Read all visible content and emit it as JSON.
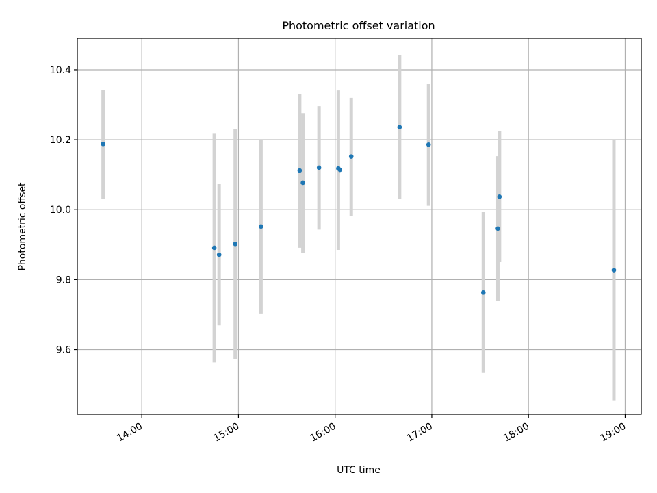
{
  "chart_data": {
    "type": "scatter",
    "title": "Photometric offset variation",
    "xlabel": "UTC time",
    "ylabel": "Photometric offset",
    "grid": true,
    "xlim": [
      "13:20",
      "19:10"
    ],
    "ylim": [
      9.415,
      10.49
    ],
    "x_ticks": [
      "14:00",
      "15:00",
      "16:00",
      "17:00",
      "18:00",
      "19:00"
    ],
    "y_ticks": [
      9.6,
      9.8,
      10.0,
      10.2,
      10.4
    ],
    "y_tick_labels": [
      "9.6",
      "9.8",
      "10.0",
      "10.2",
      "10.4"
    ],
    "colors": {
      "marker": "#1f77b4",
      "errorbar": "#d3d3d3",
      "grid": "#b0b0b0"
    },
    "series": [
      {
        "points": [
          {
            "x": "13:36",
            "y": 10.188,
            "yerr_low": 10.03,
            "yerr_high": 10.343
          },
          {
            "x": "14:45",
            "y": 9.891,
            "yerr_low": 9.563,
            "yerr_high": 10.219
          },
          {
            "x": "14:48",
            "y": 9.871,
            "yerr_low": 9.669,
            "yerr_high": 10.075
          },
          {
            "x": "14:58",
            "y": 9.902,
            "yerr_low": 9.573,
            "yerr_high": 10.231
          },
          {
            "x": "15:14",
            "y": 9.952,
            "yerr_low": 9.703,
            "yerr_high": 10.2
          },
          {
            "x": "15:38",
            "y": 10.112,
            "yerr_low": 9.891,
            "yerr_high": 10.331
          },
          {
            "x": "15:40",
            "y": 10.077,
            "yerr_low": 9.877,
            "yerr_high": 10.276
          },
          {
            "x": "15:50",
            "y": 10.12,
            "yerr_low": 9.943,
            "yerr_high": 10.296
          },
          {
            "x": "16:02",
            "y": 10.118,
            "yerr_low": 9.885,
            "yerr_high": 10.341
          },
          {
            "x": "16:03",
            "y": 10.114
          },
          {
            "x": "16:10",
            "y": 10.152,
            "yerr_low": 9.982,
            "yerr_high": 10.32
          },
          {
            "x": "16:40",
            "y": 10.236,
            "yerr_low": 10.03,
            "yerr_high": 10.442
          },
          {
            "x": "16:58",
            "y": 10.186,
            "yerr_low": 10.011,
            "yerr_high": 10.359
          },
          {
            "x": "17:32",
            "y": 9.763,
            "yerr_low": 9.533,
            "yerr_high": 9.993
          },
          {
            "x": "17:41",
            "y": 9.946,
            "yerr_low": 9.74,
            "yerr_high": 10.153
          },
          {
            "x": "17:42",
            "y": 10.037,
            "yerr_low": 9.85,
            "yerr_high": 10.225
          },
          {
            "x": "18:53",
            "y": 9.827,
            "yerr_low": 9.455,
            "yerr_high": 10.2
          }
        ]
      }
    ]
  }
}
